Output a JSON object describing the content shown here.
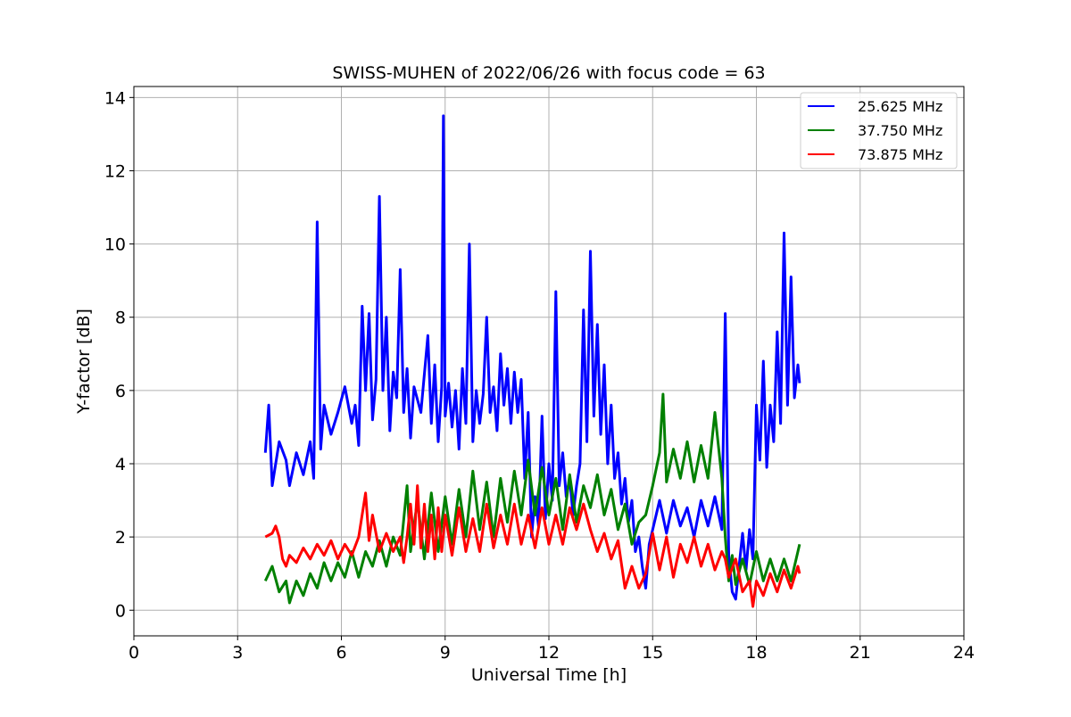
{
  "chart_data": {
    "type": "line",
    "title": "SWISS-MUHEN of 2022/06/26 with focus code = 63",
    "xlabel": "Universal Time [h]",
    "ylabel": "Y-factor [dB]",
    "xlim": [
      0,
      24
    ],
    "ylim": [
      -0.7,
      14.3
    ],
    "xticks": [
      0,
      3,
      6,
      9,
      12,
      15,
      18,
      21,
      24
    ],
    "yticks": [
      0,
      2,
      4,
      6,
      8,
      10,
      12,
      14
    ],
    "grid": true,
    "legend_position": "top-right",
    "series": [
      {
        "name": "25.625 MHz",
        "color": "#0000ff",
        "points": [
          [
            3.8,
            4.3
          ],
          [
            3.9,
            5.6
          ],
          [
            4.0,
            3.4
          ],
          [
            4.2,
            4.6
          ],
          [
            4.4,
            4.1
          ],
          [
            4.5,
            3.4
          ],
          [
            4.7,
            4.3
          ],
          [
            4.9,
            3.7
          ],
          [
            5.1,
            4.6
          ],
          [
            5.2,
            3.6
          ],
          [
            5.3,
            10.6
          ],
          [
            5.4,
            4.4
          ],
          [
            5.5,
            5.6
          ],
          [
            5.7,
            4.8
          ],
          [
            5.9,
            5.4
          ],
          [
            6.1,
            6.1
          ],
          [
            6.3,
            5.1
          ],
          [
            6.4,
            5.6
          ],
          [
            6.5,
            4.5
          ],
          [
            6.6,
            8.3
          ],
          [
            6.7,
            6.0
          ],
          [
            6.8,
            8.1
          ],
          [
            6.9,
            5.2
          ],
          [
            7.0,
            6.3
          ],
          [
            7.1,
            11.3
          ],
          [
            7.2,
            6.0
          ],
          [
            7.3,
            8.0
          ],
          [
            7.4,
            4.9
          ],
          [
            7.5,
            6.5
          ],
          [
            7.6,
            5.8
          ],
          [
            7.7,
            9.3
          ],
          [
            7.8,
            5.4
          ],
          [
            7.9,
            6.6
          ],
          [
            8.0,
            4.7
          ],
          [
            8.1,
            6.1
          ],
          [
            8.3,
            5.4
          ],
          [
            8.5,
            7.5
          ],
          [
            8.6,
            5.1
          ],
          [
            8.7,
            6.7
          ],
          [
            8.8,
            4.6
          ],
          [
            8.9,
            6.1
          ],
          [
            8.95,
            13.5
          ],
          [
            9.0,
            5.3
          ],
          [
            9.1,
            6.2
          ],
          [
            9.2,
            5.0
          ],
          [
            9.3,
            6.0
          ],
          [
            9.4,
            4.4
          ],
          [
            9.5,
            6.6
          ],
          [
            9.6,
            5.1
          ],
          [
            9.7,
            10.0
          ],
          [
            9.8,
            4.6
          ],
          [
            9.9,
            6.0
          ],
          [
            10.0,
            5.1
          ],
          [
            10.1,
            5.9
          ],
          [
            10.2,
            8.0
          ],
          [
            10.3,
            5.4
          ],
          [
            10.4,
            6.1
          ],
          [
            10.5,
            4.9
          ],
          [
            10.6,
            7.0
          ],
          [
            10.7,
            5.6
          ],
          [
            10.8,
            6.6
          ],
          [
            10.9,
            5.1
          ],
          [
            11.0,
            6.5
          ],
          [
            11.1,
            5.4
          ],
          [
            11.2,
            6.3
          ],
          [
            11.3,
            3.6
          ],
          [
            11.4,
            5.4
          ],
          [
            11.5,
            2.0
          ],
          [
            11.6,
            3.1
          ],
          [
            11.7,
            2.3
          ],
          [
            11.8,
            5.3
          ],
          [
            11.9,
            2.5
          ],
          [
            12.0,
            4.0
          ],
          [
            12.1,
            3.0
          ],
          [
            12.2,
            8.7
          ],
          [
            12.3,
            3.4
          ],
          [
            12.4,
            4.3
          ],
          [
            12.5,
            3.1
          ],
          [
            12.6,
            3.6
          ],
          [
            12.7,
            2.6
          ],
          [
            12.8,
            3.4
          ],
          [
            12.9,
            4.0
          ],
          [
            13.0,
            8.2
          ],
          [
            13.1,
            4.6
          ],
          [
            13.2,
            9.8
          ],
          [
            13.3,
            5.3
          ],
          [
            13.4,
            7.8
          ],
          [
            13.5,
            4.8
          ],
          [
            13.6,
            6.7
          ],
          [
            13.7,
            4.0
          ],
          [
            13.8,
            5.6
          ],
          [
            13.9,
            3.6
          ],
          [
            14.0,
            4.3
          ],
          [
            14.1,
            2.9
          ],
          [
            14.2,
            3.6
          ],
          [
            14.3,
            2.4
          ],
          [
            14.4,
            3.0
          ],
          [
            14.5,
            1.6
          ],
          [
            14.6,
            2.0
          ],
          [
            14.7,
            1.2
          ],
          [
            14.8,
            0.6
          ],
          [
            14.9,
            1.8
          ],
          [
            15.0,
            2.2
          ],
          [
            15.2,
            3.0
          ],
          [
            15.4,
            2.1
          ],
          [
            15.6,
            3.0
          ],
          [
            15.8,
            2.3
          ],
          [
            16.0,
            2.8
          ],
          [
            16.2,
            2.0
          ],
          [
            16.4,
            3.0
          ],
          [
            16.6,
            2.3
          ],
          [
            16.8,
            3.1
          ],
          [
            17.0,
            2.2
          ],
          [
            17.1,
            8.1
          ],
          [
            17.2,
            1.5
          ],
          [
            17.3,
            0.5
          ],
          [
            17.4,
            0.3
          ],
          [
            17.5,
            1.2
          ],
          [
            17.6,
            2.1
          ],
          [
            17.7,
            1.1
          ],
          [
            17.8,
            2.2
          ],
          [
            17.9,
            1.4
          ],
          [
            18.0,
            5.6
          ],
          [
            18.1,
            4.1
          ],
          [
            18.2,
            6.8
          ],
          [
            18.3,
            3.9
          ],
          [
            18.4,
            5.6
          ],
          [
            18.5,
            4.6
          ],
          [
            18.6,
            7.6
          ],
          [
            18.7,
            5.1
          ],
          [
            18.8,
            10.3
          ],
          [
            18.9,
            5.6
          ],
          [
            19.0,
            9.1
          ],
          [
            19.1,
            5.8
          ],
          [
            19.2,
            6.7
          ],
          [
            19.25,
            6.2
          ]
        ]
      },
      {
        "name": "37.750 MHz",
        "color": "#008000",
        "points": [
          [
            3.8,
            0.8
          ],
          [
            4.0,
            1.2
          ],
          [
            4.2,
            0.5
          ],
          [
            4.4,
            0.8
          ],
          [
            4.5,
            0.2
          ],
          [
            4.7,
            0.8
          ],
          [
            4.9,
            0.4
          ],
          [
            5.1,
            1.0
          ],
          [
            5.3,
            0.6
          ],
          [
            5.5,
            1.3
          ],
          [
            5.7,
            0.8
          ],
          [
            5.9,
            1.3
          ],
          [
            6.1,
            0.9
          ],
          [
            6.3,
            1.6
          ],
          [
            6.5,
            0.9
          ],
          [
            6.7,
            1.6
          ],
          [
            6.9,
            1.2
          ],
          [
            7.1,
            1.9
          ],
          [
            7.3,
            1.2
          ],
          [
            7.5,
            2.0
          ],
          [
            7.7,
            1.5
          ],
          [
            7.9,
            3.4
          ],
          [
            8.0,
            1.6
          ],
          [
            8.2,
            3.0
          ],
          [
            8.4,
            1.4
          ],
          [
            8.6,
            3.2
          ],
          [
            8.8,
            1.6
          ],
          [
            9.0,
            3.1
          ],
          [
            9.2,
            1.8
          ],
          [
            9.4,
            3.3
          ],
          [
            9.6,
            2.0
          ],
          [
            9.8,
            3.8
          ],
          [
            10.0,
            2.2
          ],
          [
            10.2,
            3.5
          ],
          [
            10.4,
            2.0
          ],
          [
            10.6,
            3.6
          ],
          [
            10.8,
            2.4
          ],
          [
            11.0,
            3.8
          ],
          [
            11.2,
            2.6
          ],
          [
            11.4,
            4.1
          ],
          [
            11.6,
            2.6
          ],
          [
            11.8,
            3.9
          ],
          [
            12.0,
            2.6
          ],
          [
            12.2,
            3.6
          ],
          [
            12.4,
            2.2
          ],
          [
            12.6,
            3.7
          ],
          [
            12.8,
            2.4
          ],
          [
            13.0,
            3.4
          ],
          [
            13.2,
            2.8
          ],
          [
            13.4,
            3.7
          ],
          [
            13.6,
            2.6
          ],
          [
            13.8,
            3.3
          ],
          [
            14.0,
            2.2
          ],
          [
            14.2,
            2.9
          ],
          [
            14.4,
            1.8
          ],
          [
            14.6,
            2.4
          ],
          [
            14.8,
            2.6
          ],
          [
            15.0,
            3.4
          ],
          [
            15.2,
            4.3
          ],
          [
            15.3,
            5.9
          ],
          [
            15.4,
            3.5
          ],
          [
            15.6,
            4.4
          ],
          [
            15.8,
            3.6
          ],
          [
            16.0,
            4.6
          ],
          [
            16.2,
            3.5
          ],
          [
            16.4,
            4.5
          ],
          [
            16.6,
            3.6
          ],
          [
            16.8,
            5.4
          ],
          [
            17.0,
            3.6
          ],
          [
            17.1,
            2.0
          ],
          [
            17.2,
            0.8
          ],
          [
            17.3,
            1.5
          ],
          [
            17.4,
            0.7
          ],
          [
            17.6,
            1.4
          ],
          [
            17.8,
            0.7
          ],
          [
            18.0,
            1.6
          ],
          [
            18.2,
            0.8
          ],
          [
            18.4,
            1.4
          ],
          [
            18.6,
            0.8
          ],
          [
            18.8,
            1.4
          ],
          [
            19.0,
            0.8
          ],
          [
            19.2,
            1.6
          ],
          [
            19.25,
            1.8
          ]
        ]
      },
      {
        "name": "73.875 MHz",
        "color": "#ff0000",
        "points": [
          [
            3.8,
            2.0
          ],
          [
            4.0,
            2.1
          ],
          [
            4.1,
            2.3
          ],
          [
            4.2,
            2.0
          ],
          [
            4.3,
            1.4
          ],
          [
            4.4,
            1.2
          ],
          [
            4.5,
            1.5
          ],
          [
            4.7,
            1.3
          ],
          [
            4.9,
            1.7
          ],
          [
            5.1,
            1.4
          ],
          [
            5.3,
            1.8
          ],
          [
            5.5,
            1.5
          ],
          [
            5.7,
            1.9
          ],
          [
            5.9,
            1.4
          ],
          [
            6.1,
            1.8
          ],
          [
            6.3,
            1.5
          ],
          [
            6.5,
            2.0
          ],
          [
            6.7,
            3.2
          ],
          [
            6.8,
            1.9
          ],
          [
            6.9,
            2.6
          ],
          [
            7.1,
            1.6
          ],
          [
            7.3,
            2.1
          ],
          [
            7.5,
            1.6
          ],
          [
            7.7,
            2.0
          ],
          [
            7.8,
            1.3
          ],
          [
            7.9,
            2.0
          ],
          [
            8.0,
            2.9
          ],
          [
            8.1,
            1.8
          ],
          [
            8.2,
            3.4
          ],
          [
            8.3,
            1.7
          ],
          [
            8.4,
            2.9
          ],
          [
            8.5,
            1.6
          ],
          [
            8.6,
            2.6
          ],
          [
            8.7,
            1.4
          ],
          [
            8.8,
            2.8
          ],
          [
            8.9,
            1.6
          ],
          [
            9.0,
            2.6
          ],
          [
            9.2,
            1.5
          ],
          [
            9.4,
            2.8
          ],
          [
            9.6,
            1.6
          ],
          [
            9.8,
            2.5
          ],
          [
            10.0,
            1.6
          ],
          [
            10.2,
            2.9
          ],
          [
            10.4,
            1.7
          ],
          [
            10.6,
            2.6
          ],
          [
            10.8,
            1.8
          ],
          [
            11.0,
            2.9
          ],
          [
            11.2,
            1.8
          ],
          [
            11.4,
            2.6
          ],
          [
            11.6,
            1.7
          ],
          [
            11.8,
            2.8
          ],
          [
            12.0,
            1.8
          ],
          [
            12.2,
            2.6
          ],
          [
            12.4,
            1.8
          ],
          [
            12.6,
            2.8
          ],
          [
            12.8,
            2.2
          ],
          [
            13.0,
            2.9
          ],
          [
            13.2,
            2.2
          ],
          [
            13.4,
            1.6
          ],
          [
            13.6,
            2.1
          ],
          [
            13.8,
            1.4
          ],
          [
            14.0,
            1.9
          ],
          [
            14.2,
            0.6
          ],
          [
            14.4,
            1.2
          ],
          [
            14.6,
            0.6
          ],
          [
            14.8,
            1.0
          ],
          [
            15.0,
            2.1
          ],
          [
            15.2,
            1.1
          ],
          [
            15.4,
            2.0
          ],
          [
            15.6,
            0.9
          ],
          [
            15.8,
            1.8
          ],
          [
            16.0,
            1.3
          ],
          [
            16.2,
            2.0
          ],
          [
            16.4,
            1.2
          ],
          [
            16.6,
            1.8
          ],
          [
            16.8,
            1.1
          ],
          [
            17.0,
            1.6
          ],
          [
            17.1,
            1.4
          ],
          [
            17.2,
            0.9
          ],
          [
            17.4,
            1.4
          ],
          [
            17.6,
            0.5
          ],
          [
            17.8,
            0.8
          ],
          [
            17.9,
            0.1
          ],
          [
            18.0,
            0.8
          ],
          [
            18.2,
            0.4
          ],
          [
            18.4,
            1.0
          ],
          [
            18.6,
            0.5
          ],
          [
            18.8,
            1.1
          ],
          [
            19.0,
            0.6
          ],
          [
            19.2,
            1.2
          ],
          [
            19.25,
            1.0
          ]
        ]
      }
    ]
  }
}
